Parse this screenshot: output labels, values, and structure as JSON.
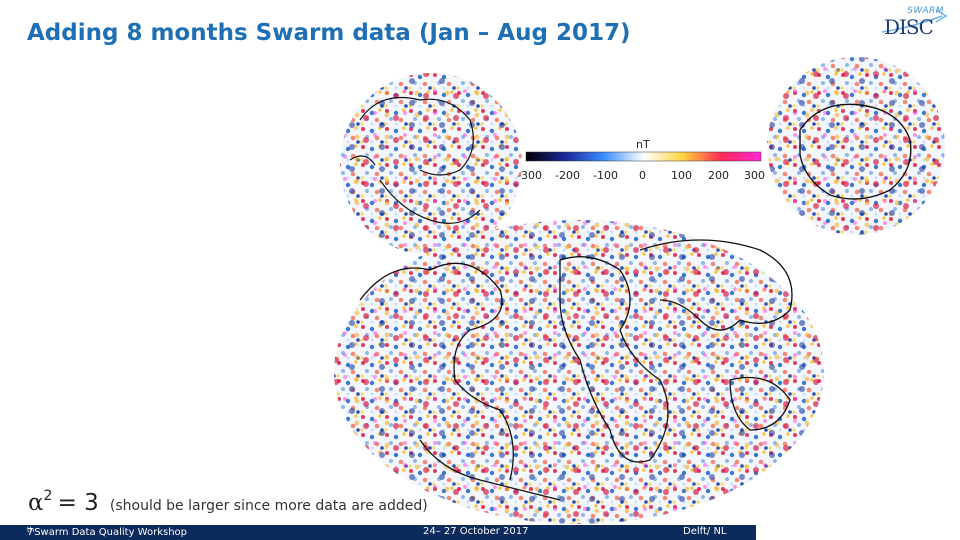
{
  "slide": {
    "title": "Adding 8 months Swarm data (Jan – Aug 2017)",
    "logo": {
      "top": "SWARM",
      "main": "DISC"
    },
    "alpha": {
      "symbol": "α",
      "superscript": "2",
      "equals": "= 3",
      "note": "(should be larger since more data are added)"
    },
    "colorbar": {
      "unit": "nT",
      "ticks": [
        "-300",
        "-200",
        "-100",
        "0",
        "100",
        "200",
        "300"
      ],
      "colors": [
        "#000000",
        "#1b2a9c",
        "#3a8bff",
        "#ffffff",
        "#ffd23a",
        "#ff2a55",
        "#ff28d8"
      ]
    },
    "maps": [
      "north-polar-map",
      "south-polar-map",
      "global-mollweide-map"
    ],
    "footer": {
      "workshop_th": "th",
      "workshop_num": "7",
      "workshop_rest": " Swarm Data Quality Workshop",
      "dates": "24– 27 October 2017",
      "place": "Delft/ NL"
    }
  }
}
